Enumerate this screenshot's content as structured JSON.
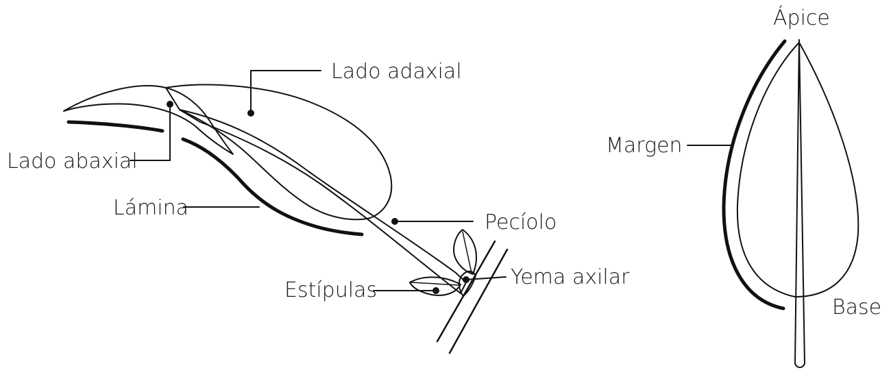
{
  "labels": {
    "lado_adaxial": "Lado adaxial",
    "lado_abaxial": "Lado abaxial",
    "lamina": "Lámina",
    "peciolo": "Pecíolo",
    "yema_axilar": "Yema axilar",
    "estipulas": "Estípulas",
    "apice": "Ápice",
    "margen": "Margen",
    "base": "Base"
  },
  "colors": {
    "ink": "#111111",
    "shade": "#e6e6e6",
    "bud": "#a8a8a8"
  }
}
